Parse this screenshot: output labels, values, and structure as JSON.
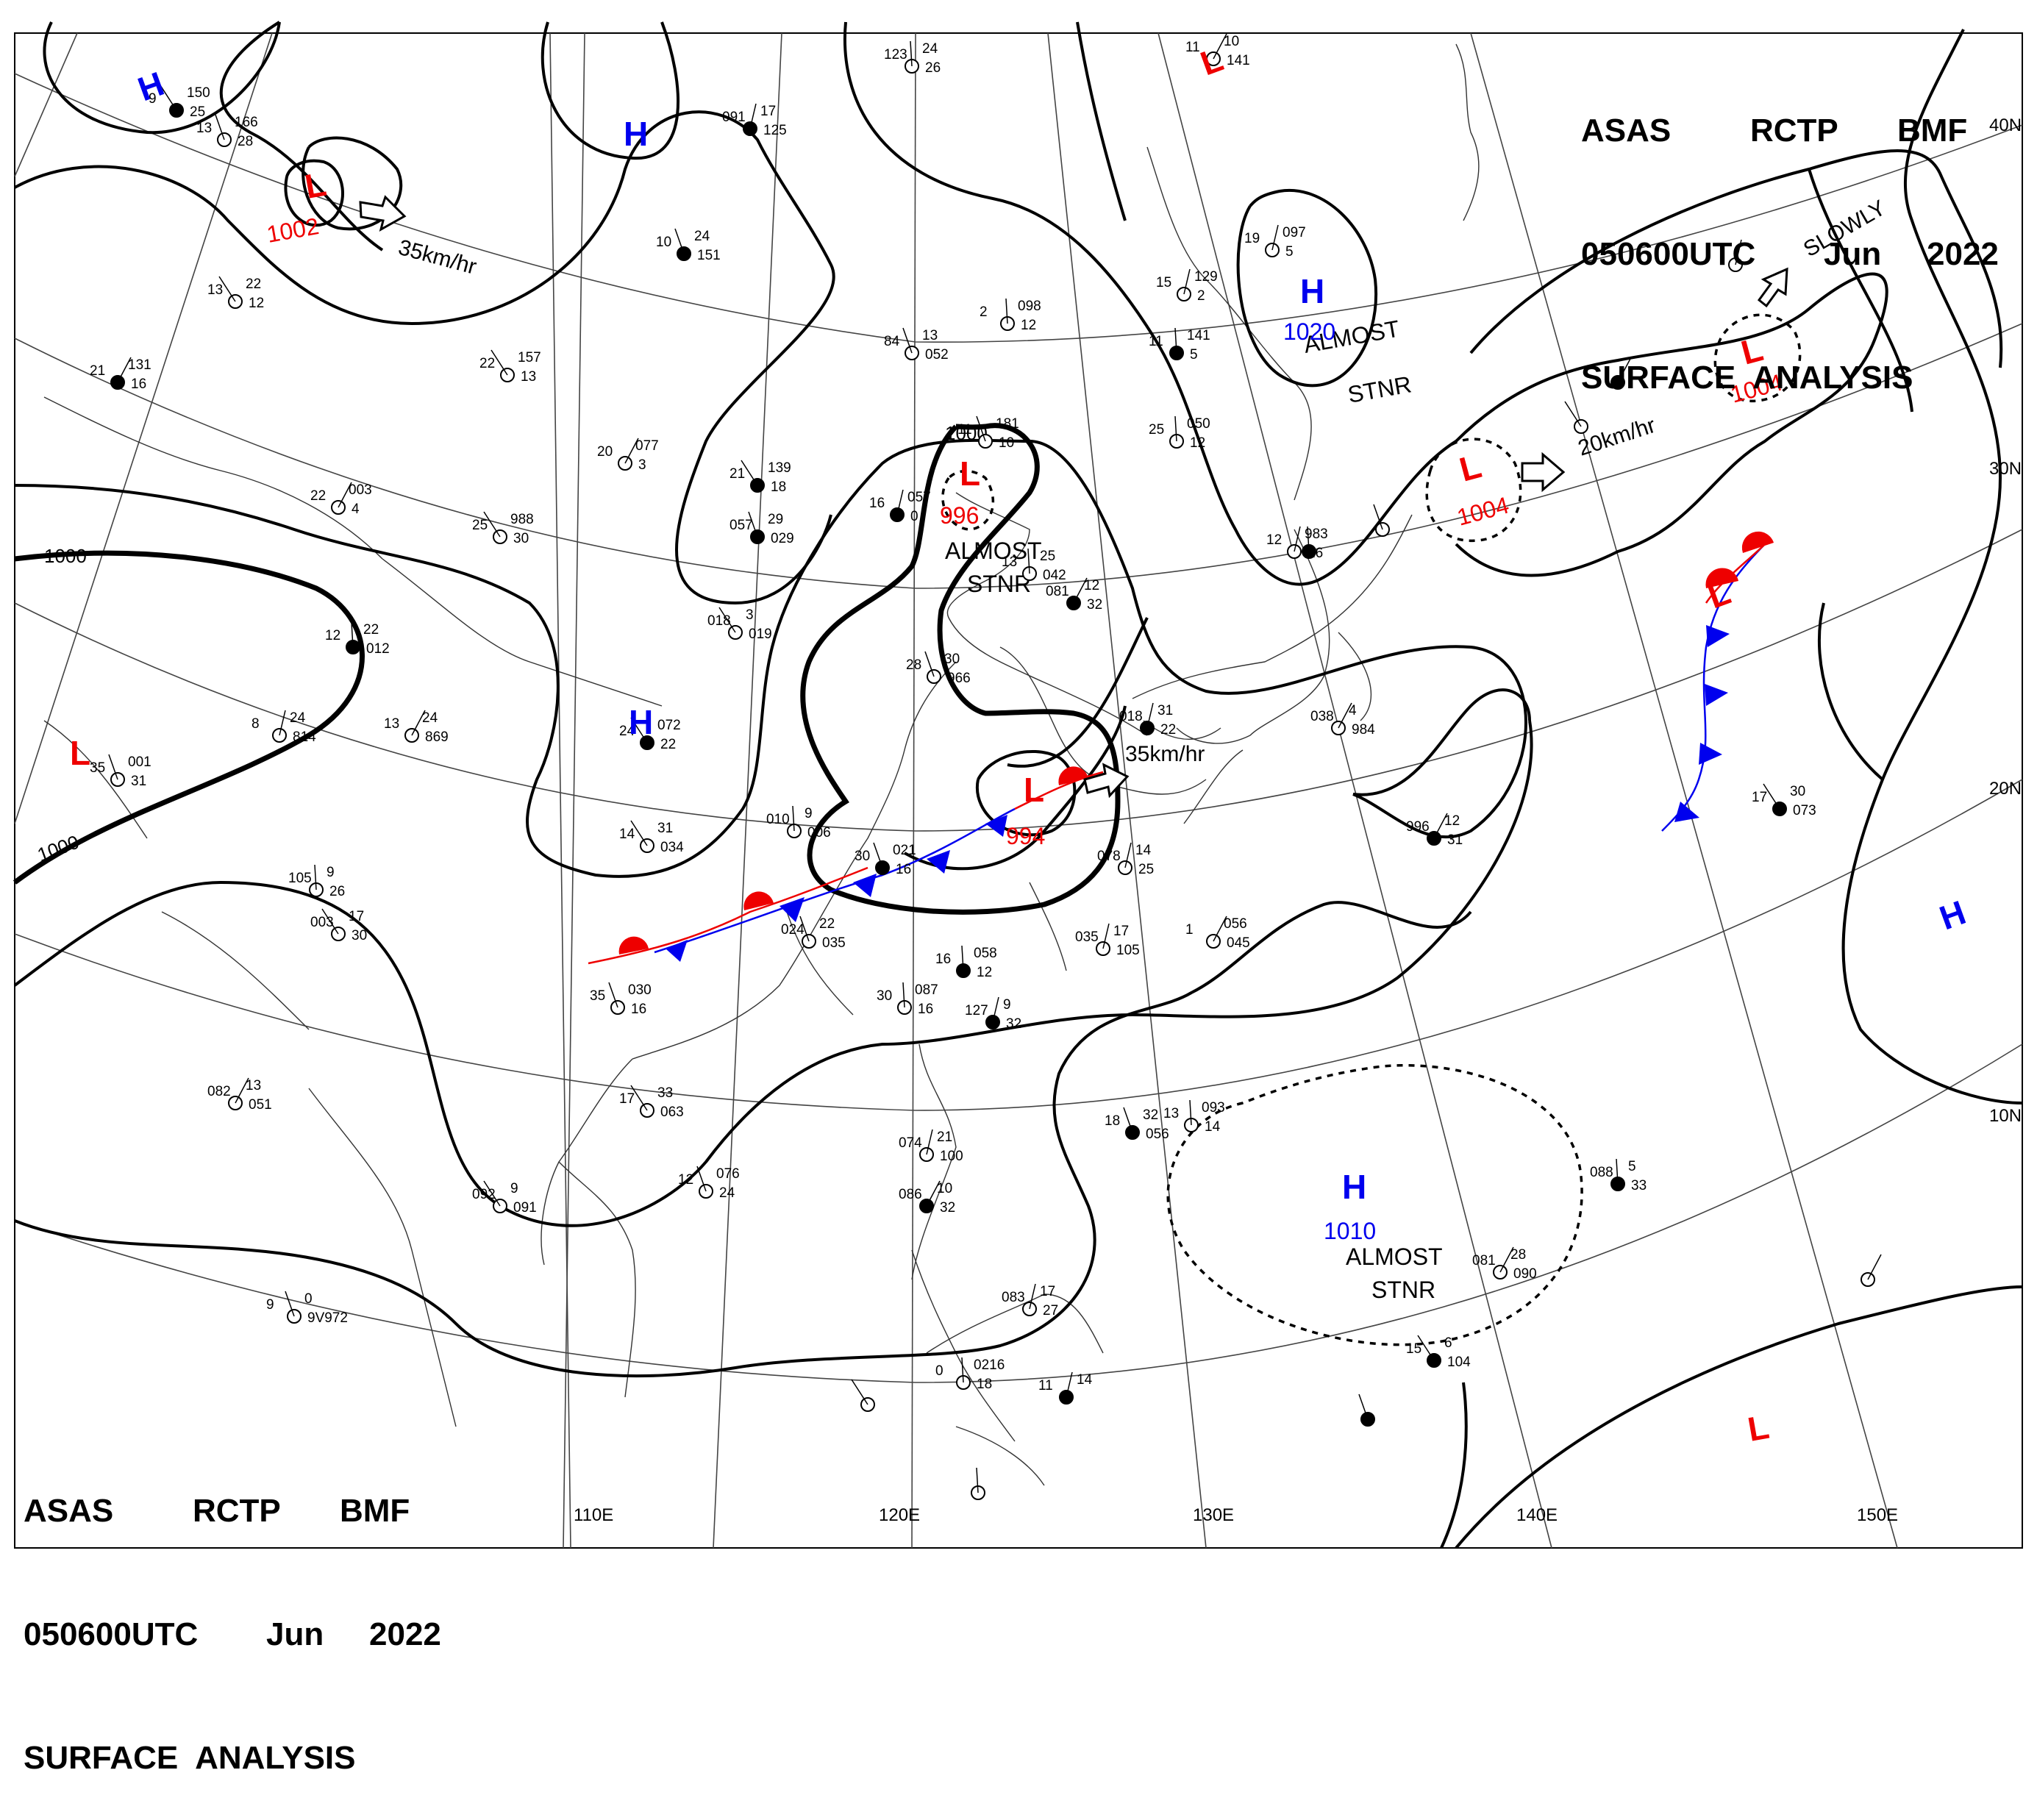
{
  "header": {
    "agency_line": [
      "ASAS",
      "RCTP",
      "BMF"
    ],
    "time_line": [
      "050600UTC",
      "Jun",
      "2022"
    ],
    "title": "SURFACE  ANALYSIS"
  },
  "colors": {
    "high": "#0000ee",
    "low": "#ee0000",
    "isobar": "#000000",
    "grid": "#555555"
  },
  "lon_labels": [
    "110E",
    "120E",
    "130E",
    "140E",
    "150E"
  ],
  "lat_labels": [
    "40N",
    "30N",
    "20N",
    "10N"
  ],
  "isobar_labels": [
    "1000",
    "1000",
    "1000"
  ],
  "pressure_systems": [
    {
      "kind": "H",
      "value": "",
      "id": "h-nw-corner"
    },
    {
      "kind": "L",
      "value": "1002",
      "id": "l-mongolia"
    },
    {
      "kind": "H",
      "value": "",
      "id": "h-north"
    },
    {
      "kind": "L",
      "value": "",
      "id": "l-sakhalin"
    },
    {
      "kind": "H",
      "value": "1020",
      "id": "h-japan-sea"
    },
    {
      "kind": "L",
      "value": "996",
      "id": "l-bohai"
    },
    {
      "kind": "L",
      "value": "994",
      "id": "l-taiwan"
    },
    {
      "kind": "H",
      "value": "",
      "id": "h-south-china"
    },
    {
      "kind": "L",
      "value": "",
      "id": "l-west"
    },
    {
      "kind": "L",
      "value": "1004",
      "id": "l-pacific-1"
    },
    {
      "kind": "L",
      "value": "1004",
      "id": "l-pacific-2"
    },
    {
      "kind": "L",
      "value": "",
      "id": "l-front-east"
    },
    {
      "kind": "H",
      "value": "",
      "id": "h-east"
    },
    {
      "kind": "H",
      "value": "1010",
      "id": "h-philippine-sea"
    },
    {
      "kind": "L",
      "value": "",
      "id": "l-southeast"
    }
  ],
  "motion_labels": [
    "35km/hr",
    "35km/hr",
    "20km/hr",
    "SLOWLY"
  ],
  "annotations": [
    [
      "ALMOST",
      "STNR"
    ],
    [
      "ALMOST",
      "STNR"
    ],
    [
      "ALMOST",
      "STNR"
    ]
  ],
  "station_numbers": [
    "9",
    "150",
    "25",
    "13",
    "166",
    "28",
    "123",
    "24",
    "26",
    "091",
    "17",
    "125",
    "11",
    "10",
    "141",
    "13",
    "22",
    "12",
    "10",
    "24",
    "151",
    "2",
    "098",
    "12",
    "15",
    "129",
    "2",
    "21",
    "131",
    "16",
    "22",
    "157",
    "13",
    "84",
    "13",
    "052",
    "11",
    "141",
    "5",
    "19",
    "097",
    "5",
    "20",
    "077",
    "3",
    "21",
    "139",
    "18",
    "11",
    "181",
    "10",
    "25",
    "050",
    "12",
    "16",
    "057",
    "0",
    "22",
    "003",
    "4",
    "25",
    "988",
    "30",
    "057",
    "29",
    "029",
    "13",
    "25",
    "042",
    "12",
    "983",
    "26",
    "081",
    "12",
    "32",
    "018",
    "3",
    "019",
    "28",
    "30",
    "966",
    "12",
    "22",
    "012",
    "8",
    "24",
    "814",
    "13",
    "24",
    "869",
    "24",
    "072",
    "22",
    "35",
    "001",
    "31",
    "010",
    "9",
    "006",
    "018",
    "31",
    "22",
    "038",
    "4",
    "984",
    "14",
    "31",
    "034",
    "30",
    "021",
    "16",
    "105",
    "9",
    "26",
    "078",
    "14",
    "25",
    "996",
    "12",
    "31",
    "003",
    "17",
    "30",
    "024",
    "22",
    "035",
    "16",
    "058",
    "12",
    "035",
    "17",
    "105",
    "1",
    "056",
    "045",
    "17",
    "30",
    "073",
    "35",
    "030",
    "16",
    "30",
    "087",
    "16",
    "127",
    "9",
    "32",
    "082",
    "13",
    "051",
    "17",
    "33",
    "063",
    "18",
    "32",
    "056",
    "13",
    "093",
    "14",
    "074",
    "21",
    "100",
    "086",
    "10",
    "32",
    "092",
    "9",
    "091",
    "12",
    "076",
    "24",
    "088",
    "5",
    "33",
    "083",
    "17",
    "27",
    "081",
    "28",
    "090",
    "15",
    "6",
    "104",
    "9",
    "0",
    "9V972",
    "0",
    "0216",
    "18",
    "11",
    "14"
  ]
}
